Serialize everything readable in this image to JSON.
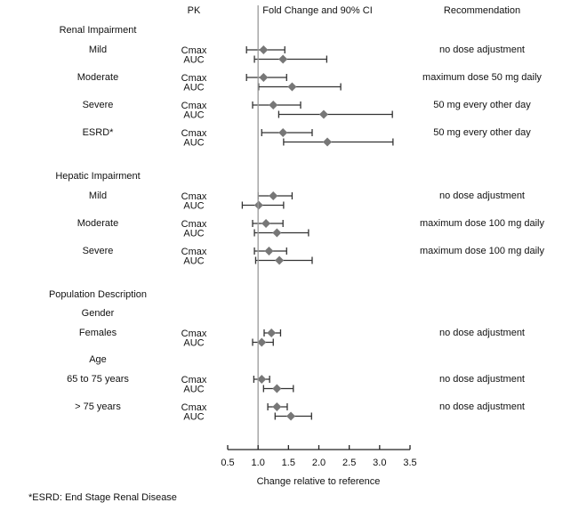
{
  "chart_data": {
    "type": "forest",
    "columns": {
      "pk": "PK",
      "fold_change": "Fold Change and 90% CI",
      "recommendation": "Recommendation"
    },
    "xlabel": "Change relative to reference",
    "xlim": [
      0.5,
      3.5
    ],
    "x_ticks": [
      0.5,
      1.0,
      1.5,
      2.0,
      2.5,
      3.0,
      3.5
    ],
    "x_tick_labels": [
      "0.5",
      "1.0",
      "1.5",
      "2.0",
      "2.5",
      "3.0",
      "3.5"
    ],
    "reference_line": 1.0,
    "footnote": "*ESRD: End Stage Renal Disease",
    "colors": {
      "marker": "#777777",
      "ci": "#333333",
      "reference": "#999999"
    },
    "rows": [
      {
        "kind": "section",
        "label": "Renal Impairment"
      },
      {
        "kind": "group",
        "label": "Mild",
        "recommendation": "no dose adjustment",
        "params": [
          {
            "pk": "Cmax",
            "estimate": 1.09,
            "lower": 0.81,
            "upper": 1.44
          },
          {
            "pk": "AUC",
            "estimate": 1.41,
            "lower": 0.94,
            "upper": 2.13
          }
        ]
      },
      {
        "kind": "group",
        "label": "Moderate",
        "recommendation": "maximum dose 50 mg daily",
        "params": [
          {
            "pk": "Cmax",
            "estimate": 1.09,
            "lower": 0.81,
            "upper": 1.47
          },
          {
            "pk": "AUC",
            "estimate": 1.56,
            "lower": 1.01,
            "upper": 2.36
          }
        ]
      },
      {
        "kind": "group",
        "label": "Severe",
        "recommendation": "50 mg every other day",
        "params": [
          {
            "pk": "Cmax",
            "estimate": 1.25,
            "lower": 0.91,
            "upper": 1.7
          },
          {
            "pk": "AUC",
            "estimate": 2.08,
            "lower": 1.34,
            "upper": 3.21
          }
        ]
      },
      {
        "kind": "group",
        "label": "ESRD*",
        "recommendation": "50 mg every other day",
        "params": [
          {
            "pk": "Cmax",
            "estimate": 1.41,
            "lower": 1.06,
            "upper": 1.89
          },
          {
            "pk": "AUC",
            "estimate": 2.14,
            "lower": 1.42,
            "upper": 3.22
          }
        ]
      },
      {
        "kind": "section",
        "label": "Hepatic Impairment"
      },
      {
        "kind": "group",
        "label": "Mild",
        "recommendation": "no dose adjustment",
        "params": [
          {
            "pk": "Cmax",
            "estimate": 1.25,
            "lower": 1.0,
            "upper": 1.56
          },
          {
            "pk": "AUC",
            "estimate": 1.01,
            "lower": 0.74,
            "upper": 1.42
          }
        ]
      },
      {
        "kind": "group",
        "label": "Moderate",
        "recommendation": "maximum dose 100 mg daily",
        "params": [
          {
            "pk": "Cmax",
            "estimate": 1.13,
            "lower": 0.91,
            "upper": 1.41
          },
          {
            "pk": "AUC",
            "estimate": 1.31,
            "lower": 0.94,
            "upper": 1.83
          }
        ]
      },
      {
        "kind": "group",
        "label": "Severe",
        "recommendation": "maximum dose 100 mg daily",
        "params": [
          {
            "pk": "Cmax",
            "estimate": 1.18,
            "lower": 0.94,
            "upper": 1.47
          },
          {
            "pk": "AUC",
            "estimate": 1.35,
            "lower": 0.96,
            "upper": 1.89
          }
        ]
      },
      {
        "kind": "section",
        "label": "Population Description"
      },
      {
        "kind": "subsection",
        "label": "Gender"
      },
      {
        "kind": "group",
        "label": "Females",
        "recommendation": "no dose adjustment",
        "params": [
          {
            "pk": "Cmax",
            "estimate": 1.22,
            "lower": 1.1,
            "upper": 1.37
          },
          {
            "pk": "AUC",
            "estimate": 1.06,
            "lower": 0.91,
            "upper": 1.25
          }
        ]
      },
      {
        "kind": "subsection",
        "label": "Age"
      },
      {
        "kind": "group",
        "label": "65 to 75 years",
        "recommendation": "no dose adjustment",
        "params": [
          {
            "pk": "Cmax",
            "estimate": 1.06,
            "lower": 0.93,
            "upper": 1.19
          },
          {
            "pk": "AUC",
            "estimate": 1.31,
            "lower": 1.09,
            "upper": 1.58
          }
        ]
      },
      {
        "kind": "group",
        "label": "> 75 years",
        "recommendation": "no dose adjustment",
        "params": [
          {
            "pk": "Cmax",
            "estimate": 1.31,
            "lower": 1.16,
            "upper": 1.48
          },
          {
            "pk": "AUC",
            "estimate": 1.54,
            "lower": 1.28,
            "upper": 1.88
          }
        ]
      }
    ]
  }
}
